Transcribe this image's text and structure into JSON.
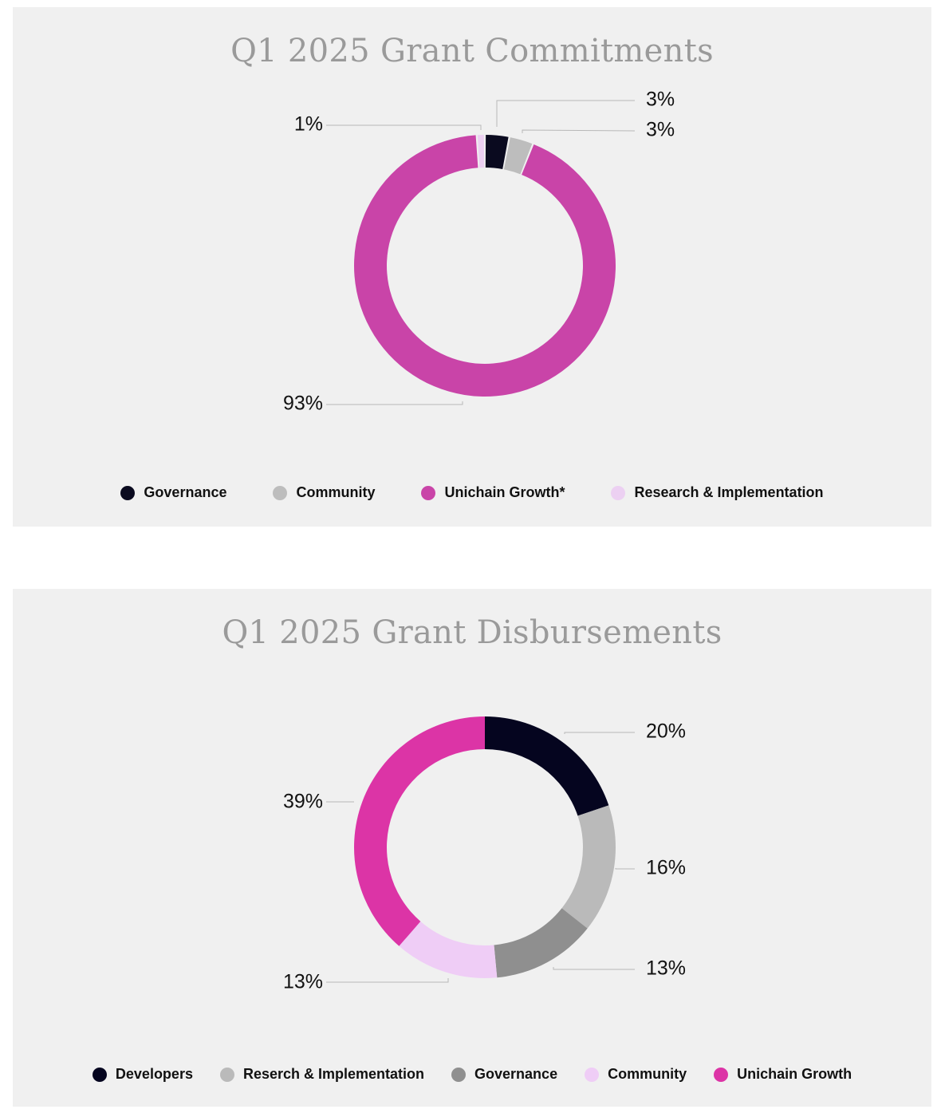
{
  "chart_data": [
    {
      "type": "pie",
      "donut": true,
      "title": "Q1 2025 Grant Commitments",
      "categories": [
        "Governance",
        "Community",
        "Unichain Growth*",
        "Research & Implementation"
      ],
      "values": [
        3,
        3,
        93,
        1
      ],
      "labels": [
        "3%",
        "3%",
        "93%",
        "1%"
      ],
      "colors": [
        "#0a0a1f",
        "#bdbdbd",
        "#c944a8",
        "#ecd0f2"
      ],
      "legend": {
        "placement": "bottom",
        "items": [
          {
            "label": "Governance",
            "color": "#0a0a1f"
          },
          {
            "label": "Community",
            "color": "#bdbdbd"
          },
          {
            "label": "Unichain Growth*",
            "color": "#c944a8"
          },
          {
            "label": "Research & Implementation",
            "color": "#ecd0f2"
          }
        ]
      }
    },
    {
      "type": "pie",
      "donut": true,
      "title": "Q1 2025 Grant Disbursements",
      "categories": [
        "Developers",
        "Reserch & Implementation",
        "Governance",
        "Community",
        "Unichain Growth"
      ],
      "values": [
        20,
        16,
        13,
        13,
        39
      ],
      "labels": [
        "20%",
        "16%",
        "13%",
        "13%",
        "39%"
      ],
      "colors": [
        "#05051f",
        "#bababa",
        "#8f8f8f",
        "#efcdf6",
        "#dc34a6"
      ],
      "legend": {
        "placement": "bottom",
        "items": [
          {
            "label": "Developers",
            "color": "#05051f"
          },
          {
            "label": "Reserch & Implementation",
            "color": "#bababa"
          },
          {
            "label": "Governance",
            "color": "#8f8f8f"
          },
          {
            "label": "Community",
            "color": "#efcdf6"
          },
          {
            "label": "Unichain Growth",
            "color": "#dc34a6"
          }
        ]
      }
    }
  ]
}
